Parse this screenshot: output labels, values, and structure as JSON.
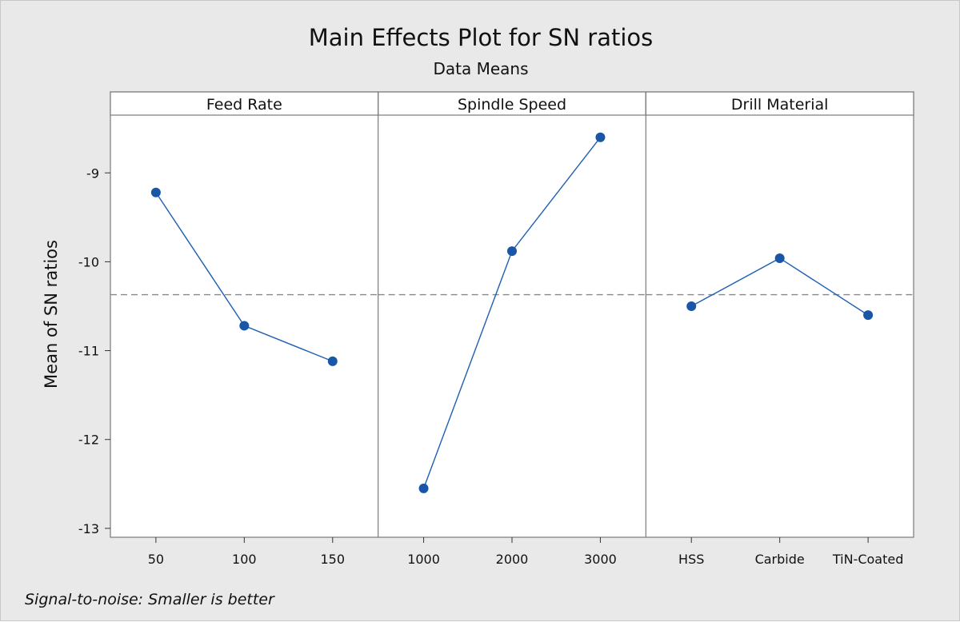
{
  "chart_data": {
    "type": "line",
    "title": "Main Effects Plot for SN ratios",
    "subtitle": "Data Means",
    "ylabel": "Mean of SN ratios",
    "ylim": [
      -13.1,
      -8.35
    ],
    "yticks": [
      "-9",
      "-10",
      "-11",
      "-12",
      "-13"
    ],
    "ytick_values": [
      -9,
      -10,
      -11,
      -12,
      -13
    ],
    "reference_line": -10.37,
    "footnote": "Signal-to-noise: Smaller is better",
    "line_color": "#1f5fb4",
    "marker_color": "#1a56a8",
    "reference_color": "#888888",
    "panels": [
      {
        "name": "Feed Rate",
        "levels": [
          "50",
          "100",
          "150"
        ],
        "values": [
          -9.22,
          -10.72,
          -11.12
        ]
      },
      {
        "name": "Spindle Speed",
        "levels": [
          "1000",
          "2000",
          "3000"
        ],
        "values": [
          -12.55,
          -9.88,
          -8.6
        ]
      },
      {
        "name": "Drill Material",
        "levels": [
          "HSS",
          "Carbide",
          "TiN-Coated"
        ],
        "values": [
          -10.5,
          -9.96,
          -10.6
        ]
      }
    ]
  }
}
